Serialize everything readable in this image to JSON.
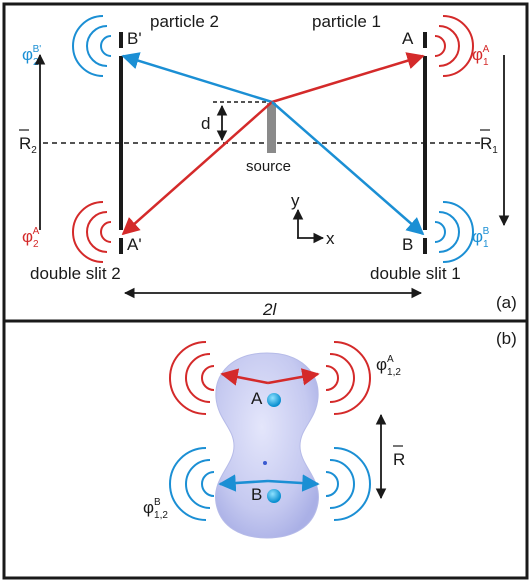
{
  "panel_a": {
    "tag": "(a)",
    "particle_2": "particle 2",
    "particle_1": "particle 1",
    "slit_A": "A",
    "slit_B": "B",
    "slit_Aprime": "A'",
    "slit_Bprime": "B'",
    "source": "source",
    "d": "d",
    "axis_y": "y",
    "axis_x": "x",
    "double_slit_2": "double slit 2",
    "double_slit_1": "double slit 1",
    "distance": "2l",
    "R1": "R",
    "R1_sub": "1",
    "R2": "R",
    "R2_sub": "2",
    "phi_B2": {
      "base": "φ",
      "sub": "2",
      "sup": "B'"
    },
    "phi_A2": {
      "base": "φ",
      "sub": "2",
      "sup": "A'"
    },
    "phi_A1": {
      "base": "φ",
      "sub": "1",
      "sup": "A"
    },
    "phi_B1": {
      "base": "φ",
      "sub": "1",
      "sup": "B"
    }
  },
  "panel_b": {
    "tag": "(b)",
    "label_A": "A",
    "label_B": "B",
    "R": "R",
    "phi_A12": {
      "base": "φ",
      "sub": "1,2",
      "sup": "A"
    },
    "phi_B12": {
      "base": "φ",
      "sub": "1,2",
      "sup": "B"
    }
  },
  "colors": {
    "red": "#d42a2a",
    "blue": "#1b8fd4",
    "frame": "#1a1a1a",
    "source": "#8a8a8a"
  }
}
